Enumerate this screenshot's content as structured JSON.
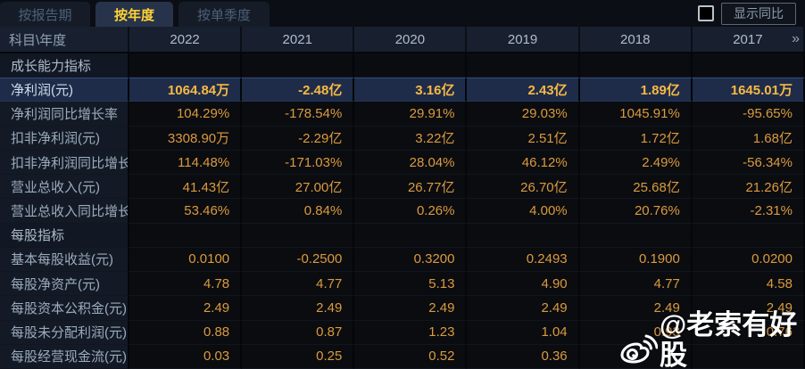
{
  "tabs": [
    {
      "label": "按报告期",
      "active": false
    },
    {
      "label": "按年度",
      "active": true
    },
    {
      "label": "按单季度",
      "active": false
    }
  ],
  "controls": {
    "show_yoy_label": "显示同比",
    "checkbox_checked": false
  },
  "table": {
    "corner_label": "科目\\年度",
    "years": [
      "2022",
      "2021",
      "2020",
      "2019",
      "2018",
      "2017"
    ],
    "more_symbol": "»",
    "rows": [
      {
        "label": "成长能力指标",
        "type": "section",
        "values": [
          "",
          "",
          "",
          "",
          "",
          ""
        ]
      },
      {
        "label": "净利润(元)",
        "type": "highlight",
        "values": [
          "1064.84万",
          "-2.48亿",
          "3.16亿",
          "2.43亿",
          "1.89亿",
          "1645.01万"
        ]
      },
      {
        "label": "净利润同比增长率",
        "type": "data",
        "values": [
          "104.29%",
          "-178.54%",
          "29.91%",
          "29.03%",
          "1045.91%",
          "-95.65%"
        ]
      },
      {
        "label": "扣非净利润(元)",
        "type": "data",
        "values": [
          "3308.90万",
          "-2.29亿",
          "3.22亿",
          "2.51亿",
          "1.72亿",
          "1.68亿"
        ]
      },
      {
        "label": "扣非净利润同比增长率",
        "type": "data",
        "values": [
          "114.48%",
          "-171.03%",
          "28.04%",
          "46.12%",
          "2.49%",
          "-56.34%"
        ]
      },
      {
        "label": "营业总收入(元)",
        "type": "data",
        "values": [
          "41.43亿",
          "27.00亿",
          "26.77亿",
          "26.70亿",
          "25.68亿",
          "21.26亿"
        ]
      },
      {
        "label": "营业总收入同比增长率",
        "type": "data",
        "values": [
          "53.46%",
          "0.84%",
          "0.26%",
          "4.00%",
          "20.76%",
          "-2.31%"
        ]
      },
      {
        "label": "每股指标",
        "type": "section",
        "values": [
          "",
          "",
          "",
          "",
          "",
          ""
        ]
      },
      {
        "label": "基本每股收益(元)",
        "type": "data",
        "values": [
          "0.0100",
          "-0.2500",
          "0.3200",
          "0.2493",
          "0.1900",
          "0.0200"
        ]
      },
      {
        "label": "每股净资产(元)",
        "type": "data",
        "values": [
          "4.78",
          "4.77",
          "5.13",
          "4.90",
          "4.77",
          "4.58"
        ]
      },
      {
        "label": "每股资本公积金(元)",
        "type": "data",
        "values": [
          "2.49",
          "2.49",
          "2.49",
          "2.49",
          "2.49",
          "2.49"
        ]
      },
      {
        "label": "每股未分配利润(元)",
        "type": "data",
        "values": [
          "0.88",
          "0.87",
          "1.23",
          "1.04",
          "0.93",
          "0.76"
        ]
      },
      {
        "label": "每股经营现金流(元)",
        "type": "data",
        "values": [
          "0.03",
          "0.25",
          "0.52",
          "0.36",
          "",
          ""
        ]
      }
    ]
  },
  "watermark": {
    "icon": "weibo-icon",
    "text": "@老索有好股"
  },
  "colors": {
    "value_orange": "#dc9a3e",
    "highlight_orange": "#f8b945",
    "tab_active_text": "#ffd335",
    "highlight_row_bg": "#1e2c49",
    "header_bg": "#182030",
    "label_cell_bg": "#131a25",
    "data_cell_bg": "#0a0c10",
    "watermark_text": "#ffffff"
  }
}
